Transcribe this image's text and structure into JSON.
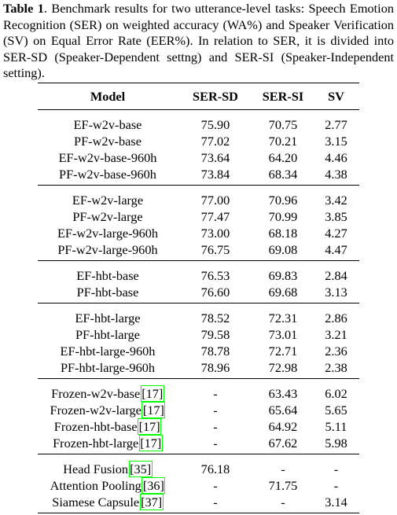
{
  "caption": {
    "label": "Table 1",
    "text": ". Benchmark results for two utterance-level tasks: Speech Emotion Recognition (SER) on weighted accuracy (WA%) and Speaker Verification (SV) on Equal Error Rate (EER%). In relation to SER, it is divided into SER-SD (Speaker-Dependent settng) and SER-SI (Speaker-Independent setting)."
  },
  "headers": [
    "Model",
    "SER-SD",
    "SER-SI",
    "SV"
  ],
  "groups": [
    [
      {
        "model": "EF-w2v-base",
        "cite": "",
        "sd": "75.90",
        "si": "70.75",
        "sv": "2.77",
        "bold": []
      },
      {
        "model": "PF-w2v-base",
        "cite": "",
        "sd": "77.02",
        "si": "70.21",
        "sv": "3.15",
        "bold": []
      },
      {
        "model": "EF-w2v-base-960h",
        "cite": "",
        "sd": "73.64",
        "si": "64.20",
        "sv": "4.46",
        "bold": []
      },
      {
        "model": "PF-w2v-base-960h",
        "cite": "",
        "sd": "73.84",
        "si": "68.34",
        "sv": "4.38",
        "bold": []
      }
    ],
    [
      {
        "model": "EF-w2v-large",
        "cite": "",
        "sd": "77.00",
        "si": "70.96",
        "sv": "3.42",
        "bold": []
      },
      {
        "model": "PF-w2v-large",
        "cite": "",
        "sd": "77.47",
        "si": "70.99",
        "sv": "3.85",
        "bold": []
      },
      {
        "model": "EF-w2v-large-960h",
        "cite": "",
        "sd": "73.00",
        "si": "68.18",
        "sv": "4.27",
        "bold": []
      },
      {
        "model": "PF-w2v-large-960h",
        "cite": "",
        "sd": "76.75",
        "si": "69.08",
        "sv": "4.47",
        "bold": []
      }
    ],
    [
      {
        "model": "EF-hbt-base",
        "cite": "",
        "sd": "76.53",
        "si": "69.83",
        "sv": "2.84",
        "bold": []
      },
      {
        "model": "PF-hbt-base",
        "cite": "",
        "sd": "76.60",
        "si": "69.68",
        "sv": "3.13",
        "bold": []
      }
    ],
    [
      {
        "model": "EF-hbt-large",
        "cite": "",
        "sd": "78.52",
        "si": "72.31",
        "sv": "2.86",
        "bold": []
      },
      {
        "model": "PF-hbt-large",
        "cite": "",
        "sd": "79.58",
        "si": "73.01",
        "sv": "3.21",
        "bold": [
          "sd",
          "si"
        ]
      },
      {
        "model": "EF-hbt-large-960h",
        "cite": "",
        "sd": "78.78",
        "si": "72.71",
        "sv": "2.36",
        "bold": [
          "sv"
        ]
      },
      {
        "model": "PF-hbt-large-960h",
        "cite": "",
        "sd": "78.96",
        "si": "72.98",
        "sv": "2.38",
        "bold": []
      }
    ],
    [
      {
        "model": "Frozen-w2v-base",
        "cite": "[17]",
        "sd": "-",
        "si": "63.43",
        "sv": "6.02",
        "bold": []
      },
      {
        "model": "Frozen-w2v-large",
        "cite": "[17]",
        "sd": "-",
        "si": "65.64",
        "sv": "5.65",
        "bold": []
      },
      {
        "model": "Frozen-hbt-base",
        "cite": "[17]",
        "sd": "-",
        "si": "64.92",
        "sv": "5.11",
        "bold": []
      },
      {
        "model": "Frozen-hbt-large",
        "cite": "[17]",
        "sd": "-",
        "si": "67.62",
        "sv": "5.98",
        "bold": []
      }
    ],
    [
      {
        "model": "Head Fusion",
        "cite": "[35]",
        "sd": "76.18",
        "si": "-",
        "sv": "-",
        "bold": []
      },
      {
        "model": "Attention Pooling",
        "cite": "[36]",
        "sd": "-",
        "si": "71.75",
        "sv": "-",
        "bold": []
      },
      {
        "model": "Siamese Capsule",
        "cite": "[37]",
        "sd": "-",
        "si": "-",
        "sv": "3.14",
        "bold": []
      }
    ]
  ]
}
